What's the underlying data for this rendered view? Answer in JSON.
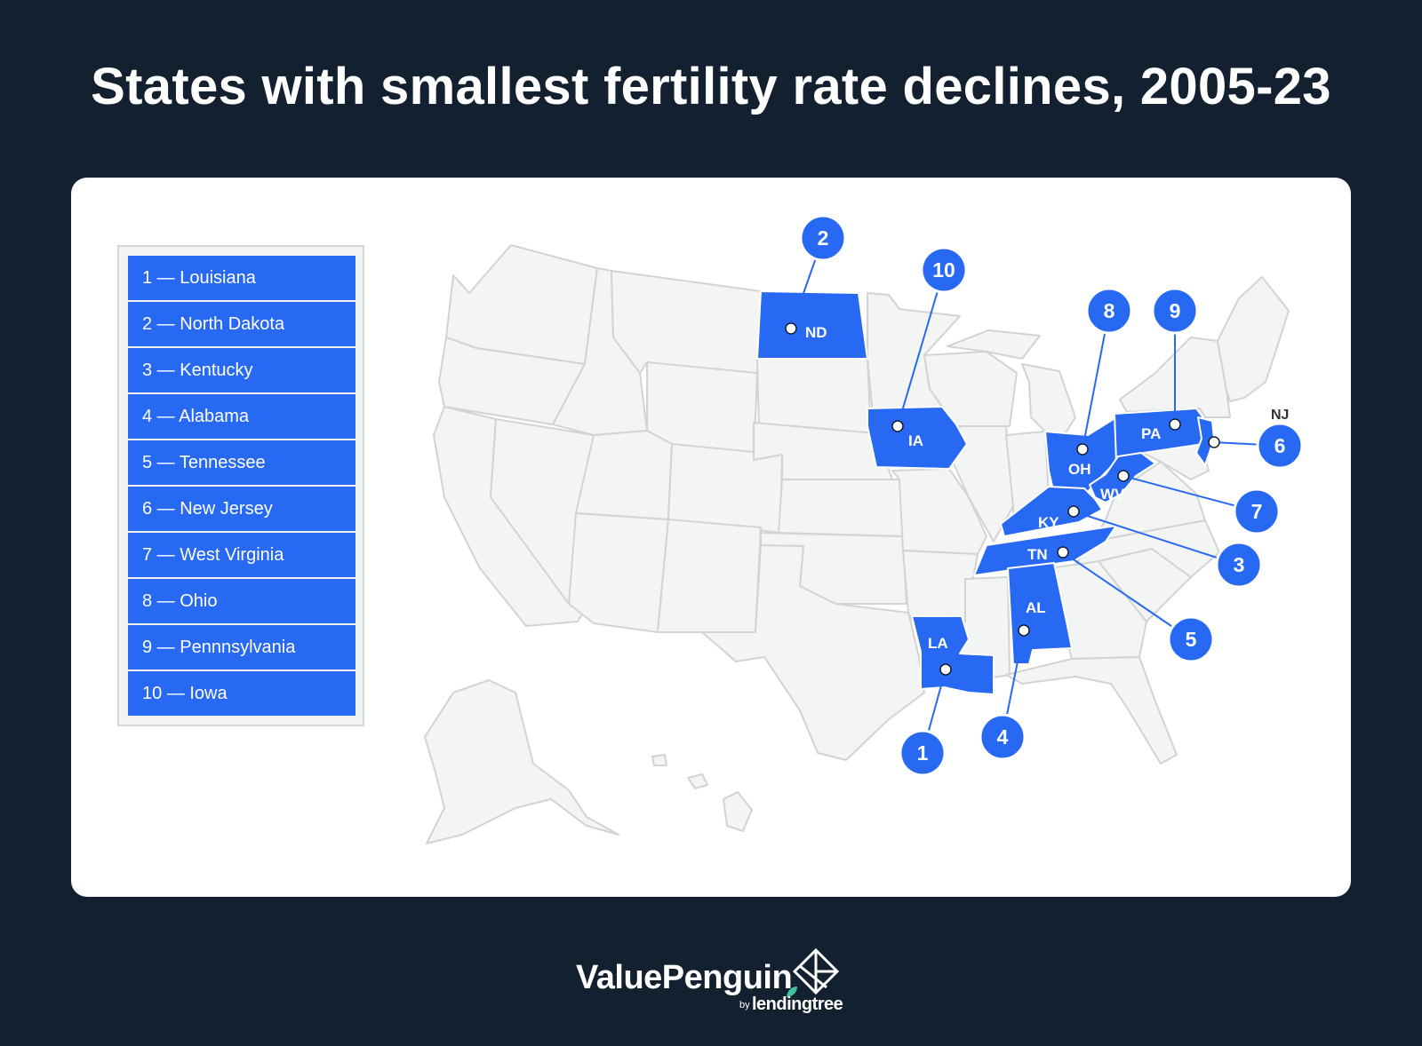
{
  "title": "States with smallest fertility rate declines, 2005-23",
  "legend": [
    "1 — Louisiana",
    "2 — North Dakota",
    "3 — Kentucky",
    "4 — Alabama",
    "5 — Tennessee",
    "6 — New Jersey",
    "7 — West Virginia",
    "8 — Ohio",
    "9 — Pennnsylvania",
    "10 — Iowa"
  ],
  "highlighted_states": [
    {
      "rank": "1",
      "abbr": "LA",
      "name": "Louisiana"
    },
    {
      "rank": "2",
      "abbr": "ND",
      "name": "North Dakota"
    },
    {
      "rank": "3",
      "abbr": "KY",
      "name": "Kentucky"
    },
    {
      "rank": "4",
      "abbr": "AL",
      "name": "Alabama"
    },
    {
      "rank": "5",
      "abbr": "TN",
      "name": "Tennessee"
    },
    {
      "rank": "6",
      "abbr": "NJ",
      "name": "New Jersey"
    },
    {
      "rank": "7",
      "abbr": "WV",
      "name": "West Virginia"
    },
    {
      "rank": "8",
      "abbr": "OH",
      "name": "Ohio"
    },
    {
      "rank": "9",
      "abbr": "PA",
      "name": "Pennnsylvania"
    },
    {
      "rank": "10",
      "abbr": "IA",
      "name": "Iowa"
    }
  ],
  "colors": {
    "background": "#13202f",
    "highlight": "#2769f2",
    "state_fill": "#f3f4f4",
    "state_border": "#d2d3d4"
  },
  "footer": {
    "brand": "ValuePenguin",
    "by": "by",
    "parent": "lendingtree"
  }
}
